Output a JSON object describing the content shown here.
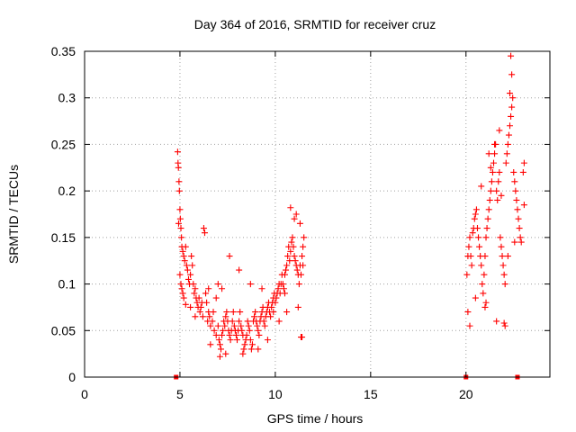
{
  "chart_data": {
    "type": "scatter",
    "title": "Day 364 of 2016, SRMTID for receiver cruz",
    "xlabel": "GPS time / hours",
    "ylabel": "SRMTID / TECUs",
    "xlim": [
      0,
      24.4
    ],
    "ylim": [
      0,
      0.35
    ],
    "x_ticks": [
      0,
      5,
      10,
      15,
      20
    ],
    "x_tick_labels": [
      "0",
      "5",
      "10",
      "15",
      "20"
    ],
    "y_ticks": [
      0,
      0.05,
      0.1,
      0.15,
      0.2,
      0.25,
      0.3,
      0.35
    ],
    "y_tick_labels": [
      "0",
      "0.05",
      "0.1",
      "0.15",
      "0.2",
      "0.25",
      "0.3",
      "0.35"
    ],
    "grid": true,
    "marker_color": "#ff0000",
    "series": [
      {
        "marker": "plus",
        "points": [
          [
            4.88,
            0.242
          ],
          [
            4.9,
            0.23
          ],
          [
            4.92,
            0.225
          ],
          [
            4.95,
            0.21
          ],
          [
            4.97,
            0.2
          ],
          [
            5.0,
            0.18
          ],
          [
            5.02,
            0.17
          ],
          [
            5.05,
            0.16
          ],
          [
            5.08,
            0.15
          ],
          [
            4.93,
            0.165
          ],
          [
            5.1,
            0.14
          ],
          [
            5.15,
            0.135
          ],
          [
            5.2,
            0.13
          ],
          [
            5.25,
            0.125
          ],
          [
            5.3,
            0.14
          ],
          [
            5.35,
            0.12
          ],
          [
            5.4,
            0.115
          ],
          [
            5.0,
            0.11
          ],
          [
            5.05,
            0.1
          ],
          [
            5.1,
            0.095
          ],
          [
            5.15,
            0.09
          ],
          [
            5.2,
            0.085
          ],
          [
            5.3,
            0.078
          ],
          [
            5.45,
            0.105
          ],
          [
            5.5,
            0.1
          ],
          [
            5.55,
            0.11
          ],
          [
            5.6,
            0.13
          ],
          [
            5.65,
            0.12
          ],
          [
            5.7,
            0.1
          ],
          [
            5.75,
            0.09
          ],
          [
            5.8,
            0.095
          ],
          [
            5.85,
            0.085
          ],
          [
            5.9,
            0.08
          ],
          [
            5.95,
            0.075
          ],
          [
            6.0,
            0.085
          ],
          [
            6.05,
            0.07
          ],
          [
            6.1,
            0.075
          ],
          [
            6.2,
            0.065
          ],
          [
            6.25,
            0.16
          ],
          [
            6.3,
            0.155
          ],
          [
            6.35,
            0.09
          ],
          [
            6.4,
            0.08
          ],
          [
            6.45,
            0.06
          ],
          [
            6.5,
            0.07
          ],
          [
            6.55,
            0.065
          ],
          [
            6.6,
            0.055
          ],
          [
            6.7,
            0.06
          ],
          [
            6.75,
            0.07
          ],
          [
            6.8,
            0.05
          ],
          [
            6.9,
            0.045
          ],
          [
            7.0,
            0.055
          ],
          [
            7.05,
            0.04
          ],
          [
            7.1,
            0.035
          ],
          [
            7.15,
            0.03
          ],
          [
            7.2,
            0.045
          ],
          [
            7.25,
            0.05
          ],
          [
            7.3,
            0.06
          ],
          [
            7.35,
            0.055
          ],
          [
            7.4,
            0.065
          ],
          [
            7.45,
            0.07
          ],
          [
            7.5,
            0.06
          ],
          [
            7.55,
            0.05
          ],
          [
            7.6,
            0.045
          ],
          [
            7.65,
            0.04
          ],
          [
            7.7,
            0.05
          ],
          [
            7.75,
            0.06
          ],
          [
            7.8,
            0.07
          ],
          [
            7.85,
            0.055
          ],
          [
            7.9,
            0.05
          ],
          [
            7.95,
            0.045
          ],
          [
            8.0,
            0.04
          ],
          [
            8.05,
            0.05
          ],
          [
            8.1,
            0.06
          ],
          [
            8.15,
            0.07
          ],
          [
            8.2,
            0.055
          ],
          [
            8.25,
            0.05
          ],
          [
            8.3,
            0.045
          ],
          [
            8.35,
            0.03
          ],
          [
            8.4,
            0.035
          ],
          [
            8.45,
            0.04
          ],
          [
            8.5,
            0.045
          ],
          [
            8.55,
            0.06
          ],
          [
            8.6,
            0.055
          ],
          [
            8.65,
            0.05
          ],
          [
            8.7,
            0.04
          ],
          [
            8.75,
            0.03
          ],
          [
            8.8,
            0.035
          ],
          [
            8.85,
            0.06
          ],
          [
            8.9,
            0.065
          ],
          [
            8.95,
            0.07
          ],
          [
            9.0,
            0.06
          ],
          [
            9.05,
            0.055
          ],
          [
            9.1,
            0.05
          ],
          [
            9.15,
            0.045
          ],
          [
            9.2,
            0.06
          ],
          [
            9.25,
            0.065
          ],
          [
            9.3,
            0.07
          ],
          [
            9.35,
            0.075
          ],
          [
            9.4,
            0.06
          ],
          [
            9.45,
            0.055
          ],
          [
            9.5,
            0.065
          ],
          [
            9.55,
            0.07
          ],
          [
            9.6,
            0.075
          ],
          [
            9.65,
            0.08
          ],
          [
            9.7,
            0.07
          ],
          [
            9.75,
            0.065
          ],
          [
            9.8,
            0.075
          ],
          [
            9.85,
            0.08
          ],
          [
            9.9,
            0.085
          ],
          [
            9.95,
            0.09
          ],
          [
            10.0,
            0.08
          ],
          [
            10.05,
            0.085
          ],
          [
            10.1,
            0.09
          ],
          [
            10.15,
            0.095
          ],
          [
            10.2,
            0.1
          ],
          [
            10.25,
            0.09
          ],
          [
            10.3,
            0.1
          ],
          [
            10.35,
            0.11
          ],
          [
            10.4,
            0.1
          ],
          [
            10.45,
            0.095
          ],
          [
            10.5,
            0.11
          ],
          [
            10.55,
            0.115
          ],
          [
            10.6,
            0.12
          ],
          [
            10.65,
            0.13
          ],
          [
            10.7,
            0.14
          ],
          [
            10.75,
            0.125
          ],
          [
            10.8,
            0.135
          ],
          [
            10.85,
            0.145
          ],
          [
            10.9,
            0.15
          ],
          [
            10.95,
            0.14
          ],
          [
            11.0,
            0.13
          ],
          [
            11.05,
            0.125
          ],
          [
            11.1,
            0.12
          ],
          [
            11.15,
            0.115
          ],
          [
            11.2,
            0.11
          ],
          [
            11.25,
            0.1
          ],
          [
            11.3,
            0.12
          ],
          [
            11.35,
            0.11
          ],
          [
            11.4,
            0.13
          ],
          [
            11.45,
            0.14
          ],
          [
            10.8,
            0.182
          ],
          [
            11.0,
            0.17
          ],
          [
            11.1,
            0.175
          ],
          [
            11.3,
            0.165
          ],
          [
            11.35,
            0.043
          ],
          [
            11.4,
            0.043
          ],
          [
            11.5,
            0.15
          ],
          [
            11.45,
            0.12
          ],
          [
            10.5,
            0.09
          ],
          [
            9.9,
            0.07
          ],
          [
            7.6,
            0.13
          ],
          [
            8.1,
            0.115
          ],
          [
            7.2,
            0.095
          ],
          [
            6.9,
            0.085
          ],
          [
            8.3,
            0.025
          ],
          [
            7.1,
            0.022
          ],
          [
            6.6,
            0.035
          ],
          [
            7.4,
            0.025
          ],
          [
            8.7,
            0.1
          ],
          [
            9.3,
            0.095
          ],
          [
            6.15,
            0.08
          ],
          [
            5.55,
            0.075
          ],
          [
            5.8,
            0.065
          ],
          [
            6.5,
            0.095
          ],
          [
            7.0,
            0.1
          ],
          [
            9.6,
            0.04
          ],
          [
            9.1,
            0.03
          ],
          [
            10.2,
            0.06
          ],
          [
            10.6,
            0.07
          ],
          [
            11.2,
            0.075
          ],
          [
            20.05,
            0.11
          ],
          [
            20.1,
            0.13
          ],
          [
            20.15,
            0.14
          ],
          [
            20.2,
            0.15
          ],
          [
            20.25,
            0.13
          ],
          [
            20.3,
            0.12
          ],
          [
            20.35,
            0.155
          ],
          [
            20.4,
            0.16
          ],
          [
            20.45,
            0.17
          ],
          [
            20.5,
            0.175
          ],
          [
            20.55,
            0.18
          ],
          [
            20.6,
            0.16
          ],
          [
            20.65,
            0.15
          ],
          [
            20.7,
            0.14
          ],
          [
            20.75,
            0.13
          ],
          [
            20.8,
            0.12
          ],
          [
            20.85,
            0.1
          ],
          [
            20.9,
            0.09
          ],
          [
            20.95,
            0.11
          ],
          [
            21.0,
            0.13
          ],
          [
            21.05,
            0.15
          ],
          [
            21.1,
            0.16
          ],
          [
            21.15,
            0.17
          ],
          [
            21.2,
            0.18
          ],
          [
            21.25,
            0.19
          ],
          [
            21.3,
            0.2
          ],
          [
            21.35,
            0.21
          ],
          [
            21.4,
            0.22
          ],
          [
            21.45,
            0.23
          ],
          [
            21.5,
            0.24
          ],
          [
            21.55,
            0.25
          ],
          [
            21.6,
            0.2
          ],
          [
            21.65,
            0.19
          ],
          [
            21.7,
            0.21
          ],
          [
            21.75,
            0.22
          ],
          [
            21.8,
            0.15
          ],
          [
            21.85,
            0.14
          ],
          [
            21.9,
            0.13
          ],
          [
            21.95,
            0.12
          ],
          [
            22.0,
            0.11
          ],
          [
            22.05,
            0.1
          ],
          [
            22.1,
            0.23
          ],
          [
            22.15,
            0.24
          ],
          [
            22.2,
            0.25
          ],
          [
            22.25,
            0.26
          ],
          [
            22.3,
            0.27
          ],
          [
            22.35,
            0.28
          ],
          [
            22.4,
            0.29
          ],
          [
            22.45,
            0.3
          ],
          [
            22.5,
            0.22
          ],
          [
            22.55,
            0.21
          ],
          [
            22.6,
            0.2
          ],
          [
            22.65,
            0.19
          ],
          [
            22.7,
            0.18
          ],
          [
            22.75,
            0.17
          ],
          [
            22.8,
            0.16
          ],
          [
            22.85,
            0.15
          ],
          [
            22.9,
            0.145
          ],
          [
            23.0,
            0.22
          ],
          [
            23.05,
            0.23
          ],
          [
            22.35,
            0.345
          ],
          [
            22.4,
            0.325
          ],
          [
            22.3,
            0.305
          ],
          [
            21.75,
            0.265
          ],
          [
            21.5,
            0.25
          ],
          [
            21.3,
            0.225
          ],
          [
            22.0,
            0.058
          ],
          [
            22.05,
            0.055
          ],
          [
            20.2,
            0.055
          ],
          [
            20.1,
            0.07
          ],
          [
            21.0,
            0.075
          ],
          [
            21.05,
            0.08
          ],
          [
            21.6,
            0.06
          ],
          [
            23.05,
            0.185
          ],
          [
            22.55,
            0.145
          ],
          [
            20.5,
            0.085
          ],
          [
            21.85,
            0.195
          ],
          [
            20.8,
            0.205
          ],
          [
            21.2,
            0.24
          ],
          [
            22.2,
            0.13
          ]
        ]
      },
      {
        "marker": "square",
        "points": [
          [
            4.8,
            0.0
          ],
          [
            20.0,
            0.0
          ],
          [
            22.7,
            0.0
          ]
        ]
      }
    ]
  }
}
